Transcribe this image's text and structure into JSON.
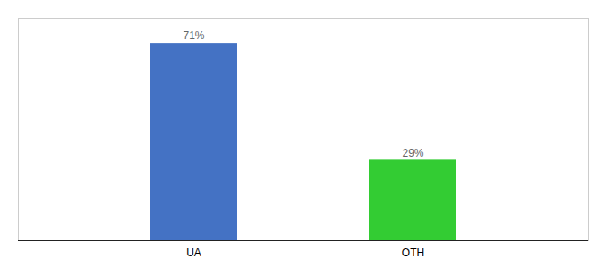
{
  "chart_data": {
    "type": "bar",
    "categories": [
      "UA",
      "OTH"
    ],
    "values": [
      71,
      29
    ],
    "value_labels": [
      "71%",
      "29%"
    ],
    "colors": [
      "#4472c4",
      "#33cc33"
    ],
    "ylim": [
      0,
      80
    ],
    "yticks": [],
    "data_labels": true,
    "tick_labels": "x",
    "grid": false
  }
}
